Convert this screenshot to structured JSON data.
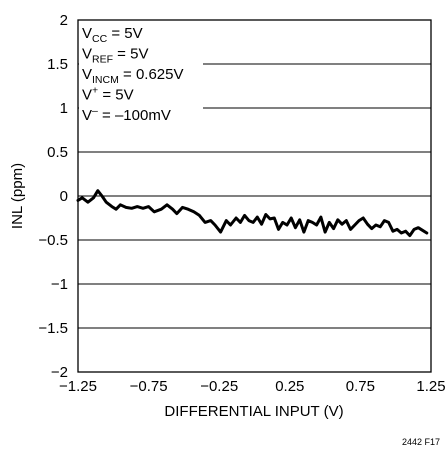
{
  "chart_data": {
    "type": "line",
    "xlabel": "DIFFERENTIAL INPUT (V)",
    "ylabel": "INL (ppm)",
    "xlim": [
      -1.25,
      1.25
    ],
    "ylim": [
      -2,
      2
    ],
    "x_ticks": [
      "−1.25",
      "−0.75",
      "−0.25",
      "0.25",
      "0.75",
      "1.25"
    ],
    "y_ticks": [
      "2",
      "1.5",
      "1",
      "0.5",
      "0",
      "−0.5",
      "−1",
      "−1.5",
      "−2"
    ],
    "grid": true,
    "conditions": [
      {
        "main": "V",
        "sub": "CC",
        "sup": "",
        "rest": " = 5V"
      },
      {
        "main": "V",
        "sub": "REF",
        "sup": "",
        "rest": " = 5V"
      },
      {
        "main": "V",
        "sub": "INCM",
        "sup": "",
        "rest": " = 0.625V"
      },
      {
        "main": "V",
        "sub": "",
        "sup": "+",
        "rest": " = 5V"
      },
      {
        "main": "V",
        "sub": "",
        "sup": "–",
        "rest": " = –100mV"
      }
    ],
    "figure_code": "2442 F17",
    "series": [
      {
        "x": [
          -1.25,
          -1.22,
          -1.18,
          -1.14,
          -1.11,
          -1.08,
          -1.05,
          -1.01,
          -0.98,
          -0.95,
          -0.91,
          -0.87,
          -0.83,
          -0.79,
          -0.75,
          -0.71,
          -0.66,
          -0.62,
          -0.58,
          -0.55,
          -0.51,
          -0.47,
          -0.43,
          -0.39,
          -0.35,
          -0.31,
          -0.28,
          -0.24,
          -0.2,
          -0.17,
          -0.13,
          -0.1,
          -0.07,
          -0.04,
          -0.01,
          0.02,
          0.05,
          0.08,
          0.11,
          0.14,
          0.17,
          0.2,
          0.23,
          0.26,
          0.29,
          0.32,
          0.35,
          0.38,
          0.41,
          0.44,
          0.47,
          0.5,
          0.53,
          0.56,
          0.59,
          0.62,
          0.65,
          0.68,
          0.71,
          0.74,
          0.77,
          0.8,
          0.83,
          0.86,
          0.89,
          0.92,
          0.95,
          0.98,
          1.01,
          1.04,
          1.07,
          1.1,
          1.13,
          1.16,
          1.19,
          1.22
        ],
        "y": [
          -0.05,
          -0.02,
          -0.07,
          -0.02,
          0.06,
          0.0,
          -0.07,
          -0.12,
          -0.15,
          -0.1,
          -0.13,
          -0.14,
          -0.12,
          -0.14,
          -0.12,
          -0.18,
          -0.15,
          -0.1,
          -0.15,
          -0.2,
          -0.13,
          -0.15,
          -0.18,
          -0.22,
          -0.3,
          -0.28,
          -0.33,
          -0.41,
          -0.28,
          -0.33,
          -0.25,
          -0.3,
          -0.22,
          -0.28,
          -0.3,
          -0.24,
          -0.32,
          -0.21,
          -0.26,
          -0.25,
          -0.38,
          -0.3,
          -0.33,
          -0.25,
          -0.36,
          -0.27,
          -0.41,
          -0.28,
          -0.3,
          -0.33,
          -0.24,
          -0.41,
          -0.3,
          -0.37,
          -0.27,
          -0.32,
          -0.28,
          -0.38,
          -0.33,
          -0.28,
          -0.25,
          -0.32,
          -0.37,
          -0.33,
          -0.35,
          -0.28,
          -0.3,
          -0.4,
          -0.38,
          -0.42,
          -0.4,
          -0.45,
          -0.38,
          -0.36,
          -0.39,
          -0.42
        ]
      }
    ]
  }
}
